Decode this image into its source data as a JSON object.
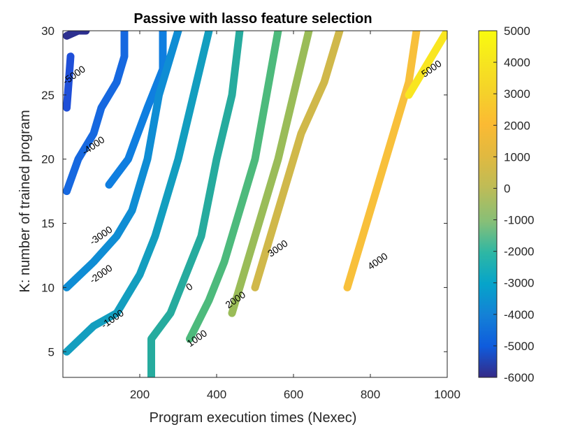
{
  "chart_data": {
    "type": "contour",
    "title": "Passive with lasso feature selection",
    "xlabel": "Program execution times (Nexec)",
    "ylabel": "K: number of trained program",
    "xlim": [
      0,
      1000
    ],
    "ylim": [
      3,
      30
    ],
    "xticks": [
      200,
      400,
      600,
      800,
      1000
    ],
    "yticks": [
      5,
      10,
      15,
      20,
      25,
      30
    ],
    "grid": false,
    "colorbar": {
      "range": [
        -6000,
        5000
      ],
      "ticks": [
        5000,
        4000,
        3000,
        2000,
        1000,
        0,
        -1000,
        -2000,
        -3000,
        -4000,
        -5000,
        -6000
      ],
      "colormap": "parula"
    },
    "levels": [
      {
        "level": -6000,
        "color": "#2c2f8f",
        "paths": [
          [
            [
              10,
              29.6
            ],
            [
              40,
              30
            ],
            [
              60,
              30
            ]
          ]
        ]
      },
      {
        "level": -5000,
        "color": "#1f4fd8",
        "paths": [
          [
            [
              10,
              24
            ],
            [
              15,
              26
            ],
            [
              20,
              28
            ]
          ]
        ],
        "label": {
          "text": "-5000",
          "at": [
            30,
            26.5
          ]
        }
      },
      {
        "level": -4000,
        "color": "#1668e0",
        "paths": [
          [
            [
              10,
              17.5
            ],
            [
              40,
              20
            ],
            [
              80,
              22
            ],
            [
              100,
              24
            ],
            [
              140,
              26
            ],
            [
              160,
              28
            ],
            [
              160,
              30
            ]
          ]
        ],
        "label": {
          "text": "-4000",
          "at": [
            80,
            21
          ]
        }
      },
      {
        "level": -3000,
        "color": "#0f7ee0",
        "paths": [
          [
            [
              120,
              18
            ],
            [
              170,
              20
            ],
            [
              220,
              24
            ],
            [
              260,
              27
            ],
            [
              260,
              30
            ]
          ]
        ],
        "label": {
          "text": "-3000",
          "at": [
            100,
            14
          ]
        }
      },
      {
        "level": -2000,
        "color": "#0f8dd4",
        "paths": [
          [
            [
              10,
              10
            ],
            [
              80,
              12
            ],
            [
              140,
              14
            ],
            [
              180,
              16
            ],
            [
              220,
              20
            ],
            [
              250,
              25
            ],
            [
              300,
              30
            ]
          ]
        ],
        "label": {
          "text": "-2000",
          "at": [
            100,
            11
          ]
        }
      },
      {
        "level": -1000,
        "color": "#139ebf",
        "paths": [
          [
            [
              10,
              5
            ],
            [
              80,
              7
            ],
            [
              140,
              8
            ],
            [
              200,
              11
            ],
            [
              240,
              14
            ],
            [
              300,
              20
            ],
            [
              340,
              25
            ],
            [
              380,
              30
            ]
          ]
        ],
        "label": {
          "text": "-1000",
          "at": [
            130,
            7.5
          ]
        }
      },
      {
        "level": 0,
        "color": "#26ab9e",
        "paths": [
          [
            [
              230,
              3
            ],
            [
              230,
              6
            ],
            [
              280,
              8
            ],
            [
              320,
              11
            ],
            [
              360,
              14
            ],
            [
              400,
              20
            ],
            [
              440,
              25
            ],
            [
              460,
              30
            ]
          ]
        ],
        "label": {
          "text": "0",
          "at": [
            330,
            10
          ]
        }
      },
      {
        "level": 1000,
        "color": "#4dba7c",
        "paths": [
          [
            [
              330,
              6
            ],
            [
              380,
              9
            ],
            [
              420,
              12
            ],
            [
              460,
              16
            ],
            [
              500,
              20
            ],
            [
              530,
              25
            ],
            [
              560,
              30
            ]
          ]
        ],
        "label": {
          "text": "1000",
          "at": [
            350,
            6
          ]
        }
      },
      {
        "level": 2000,
        "color": "#9abc58",
        "paths": [
          [
            [
              440,
              8
            ],
            [
              480,
              12
            ],
            [
              520,
              16
            ],
            [
              560,
              20
            ],
            [
              600,
              25
            ],
            [
              640,
              30
            ]
          ]
        ],
        "label": {
          "text": "2000",
          "at": [
            450,
            9
          ]
        }
      },
      {
        "level": 3000,
        "color": "#d0b84a",
        "paths": [
          [
            [
              500,
              10
            ],
            [
              540,
              14
            ],
            [
              580,
              18
            ],
            [
              620,
              22
            ],
            [
              680,
              26
            ],
            [
              720,
              30
            ]
          ]
        ],
        "label": {
          "text": "3000",
          "at": [
            560,
            13
          ]
        }
      },
      {
        "level": 4000,
        "color": "#f8c03b",
        "paths": [
          [
            [
              740,
              10
            ],
            [
              780,
              14
            ],
            [
              820,
              18
            ],
            [
              860,
              22
            ],
            [
              900,
              26
            ],
            [
              920,
              30
            ]
          ]
        ],
        "label": {
          "text": "4000",
          "at": [
            820,
            12
          ]
        }
      },
      {
        "level": 5000,
        "color": "#f9e620",
        "paths": [
          [
            [
              900,
              25
            ],
            [
              960,
              28
            ],
            [
              1000,
              30
            ]
          ]
        ],
        "label": {
          "text": "5000",
          "at": [
            960,
            27
          ]
        }
      }
    ]
  }
}
